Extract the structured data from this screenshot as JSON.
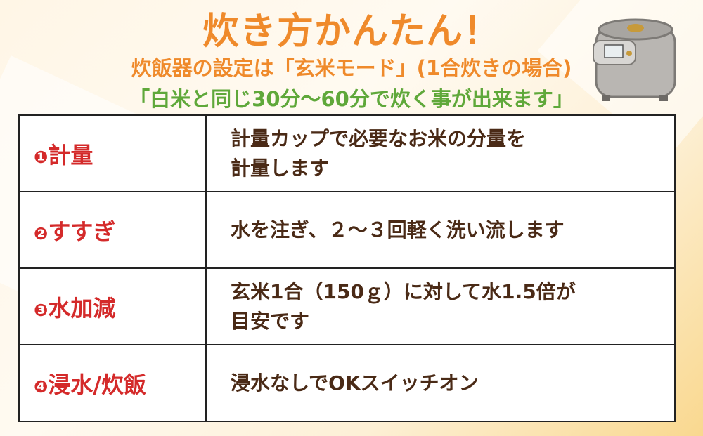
{
  "header": {
    "title": "炊き方かんたん！",
    "subtitle": "炊飯器の設定は「玄米モード」(1合炊きの場合)",
    "note": "「白米と同じ30分〜60分で炊く事が出来ます」"
  },
  "colors": {
    "title": "#ef8a2b",
    "note": "#5fa83a",
    "step": "#d42a2a",
    "desc": "#4a2a16"
  },
  "illustration": "rice-cooker-icon",
  "steps": [
    {
      "num": "❶",
      "label": "計量",
      "desc_lines": [
        "計量カップで必要なお米の分量を",
        "計量します"
      ]
    },
    {
      "num": "❷",
      "label": "すすぎ",
      "desc_lines": [
        "水を注ぎ、２〜３回軽く洗い流します"
      ]
    },
    {
      "num": "❸",
      "label": "水加減",
      "desc_lines": [
        "玄米1合（150ｇ）に対して水1.5倍が",
        "目安です"
      ]
    },
    {
      "num": "❹",
      "label": "浸水/炊飯",
      "desc_lines": [
        "浸水なしでOKスイッチオン"
      ]
    }
  ]
}
